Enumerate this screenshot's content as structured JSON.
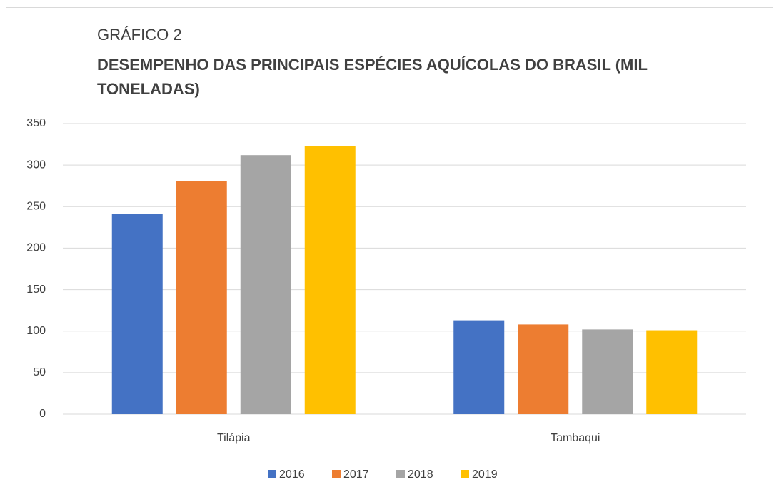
{
  "chart_data": {
    "type": "bar",
    "title": "GRÁFICO 2",
    "subtitle": "DESEMPENHO DAS PRINCIPAIS ESPÉCIES AQUÍCOLAS DO BRASIL (MIL TONELADAS)",
    "categories": [
      "Tilápia",
      "Tambaqui"
    ],
    "series": [
      {
        "name": "2016",
        "color": "#4472c4",
        "values": [
          241,
          113
        ]
      },
      {
        "name": "2017",
        "color": "#ed7d31",
        "values": [
          281,
          108
        ]
      },
      {
        "name": "2018",
        "color": "#a5a5a5",
        "values": [
          312,
          102
        ]
      },
      {
        "name": "2019",
        "color": "#ffc000",
        "values": [
          323,
          101
        ]
      }
    ],
    "ylim": [
      0,
      350
    ],
    "yticks": [
      0,
      50,
      100,
      150,
      200,
      250,
      300,
      350
    ],
    "grid": true,
    "legend": "bottom"
  }
}
